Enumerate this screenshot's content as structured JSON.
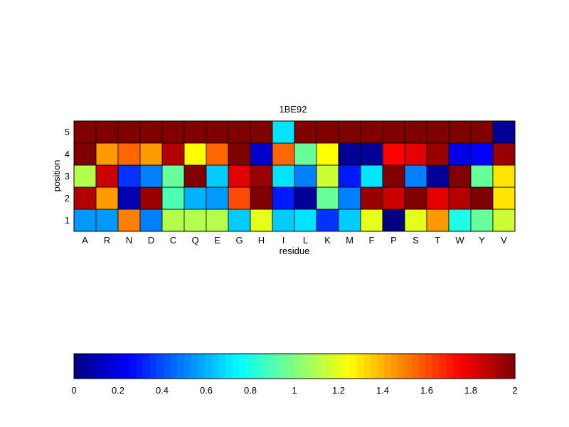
{
  "chart_data": {
    "type": "heatmap",
    "title": "1BE92",
    "xlabel": "residue",
    "ylabel": "position",
    "x_categories": [
      "A",
      "R",
      "N",
      "D",
      "C",
      "Q",
      "E",
      "G",
      "H",
      "I",
      "L",
      "K",
      "M",
      "F",
      "P",
      "S",
      "T",
      "W",
      "Y",
      "V"
    ],
    "y_categories": [
      "1",
      "2",
      "3",
      "4",
      "5"
    ],
    "values": [
      [
        0.55,
        0.55,
        1.5,
        0.5,
        1.1,
        1.1,
        1.1,
        0.65,
        1.2,
        0.65,
        0.7,
        0.35,
        0.65,
        1.2,
        0.0,
        1.2,
        1.45,
        0.8,
        0.95,
        1.15
      ],
      [
        1.9,
        1.45,
        0.1,
        1.95,
        0.9,
        0.6,
        0.55,
        1.6,
        2.0,
        0.3,
        0.05,
        0.95,
        0.5,
        1.95,
        1.85,
        2.0,
        1.8,
        1.9,
        2.0,
        1.3
      ],
      [
        1.1,
        1.85,
        0.35,
        0.5,
        0.95,
        2.0,
        0.65,
        1.8,
        1.95,
        0.7,
        0.5,
        1.15,
        0.3,
        0.7,
        2.0,
        0.5,
        0.05,
        2.0,
        0.95,
        1.3
      ],
      [
        2.0,
        1.45,
        1.55,
        1.45,
        1.9,
        1.25,
        1.55,
        2.0,
        0.15,
        1.55,
        0.95,
        1.25,
        0.05,
        0.05,
        1.75,
        1.8,
        1.95,
        0.2,
        0.25,
        1.95
      ],
      [
        2.0,
        2.0,
        2.0,
        2.0,
        2.0,
        2.0,
        2.0,
        2.0,
        2.0,
        0.7,
        2.0,
        2.0,
        2.0,
        2.0,
        2.0,
        2.0,
        2.0,
        2.0,
        2.0,
        0.05
      ]
    ],
    "colormap": "jet",
    "clim": [
      0,
      2
    ],
    "colorbar": {
      "orientation": "horizontal",
      "position": "bottom",
      "ticks": [
        "0",
        "0.2",
        "0.4",
        "0.6",
        "0.8",
        "1",
        "1.2",
        "1.4",
        "1.6",
        "1.8",
        "2"
      ]
    }
  }
}
